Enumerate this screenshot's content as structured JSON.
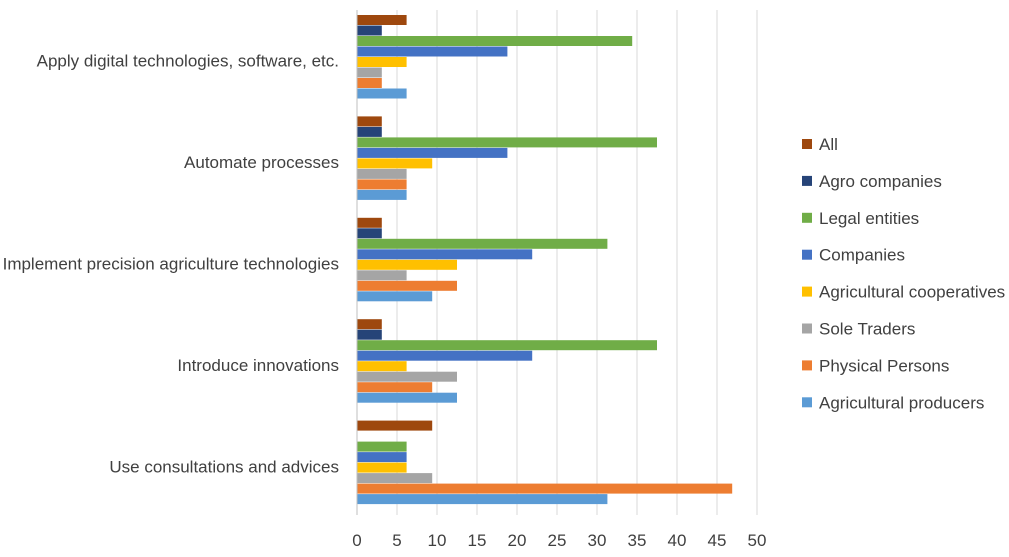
{
  "chart_data": {
    "type": "bar",
    "orientation": "horizontal",
    "categories": [
      "Apply digital technologies, software, etc.",
      "Automate processes",
      "Implement precision agriculture technologies",
      "Introduce innovations",
      "Use consultations and advices"
    ],
    "series": [
      {
        "name": "All",
        "color": "#9E480E",
        "values": [
          6.2,
          3.1,
          3.1,
          3.1,
          9.4
        ]
      },
      {
        "name": "Agro companies",
        "color": "#264478",
        "values": [
          3.1,
          3.1,
          3.1,
          3.1,
          0
        ]
      },
      {
        "name": "Legal entities",
        "color": "#70AD47",
        "values": [
          34.4,
          37.5,
          31.3,
          37.5,
          6.2
        ]
      },
      {
        "name": "Companies",
        "color": "#4472C4",
        "values": [
          18.8,
          18.8,
          21.9,
          21.9,
          6.2
        ]
      },
      {
        "name": "Agricultural cooperatives",
        "color": "#FFC000",
        "values": [
          6.2,
          9.4,
          12.5,
          6.2,
          6.2
        ]
      },
      {
        "name": "Sole Traders",
        "color": "#A5A5A5",
        "values": [
          3.1,
          6.2,
          6.2,
          12.5,
          9.4
        ]
      },
      {
        "name": "Physical Persons",
        "color": "#ED7D31",
        "values": [
          3.1,
          6.2,
          12.5,
          9.4,
          46.9
        ]
      },
      {
        "name": "Agricultural producers",
        "color": "#5B9BD5",
        "values": [
          6.2,
          6.2,
          9.4,
          12.5,
          31.3
        ]
      }
    ],
    "x_ticks": [
      "0",
      "5",
      "10",
      "15",
      "20",
      "25",
      "30",
      "35",
      "40",
      "45",
      "50"
    ],
    "xlim": [
      0,
      50
    ],
    "grid": "vertical",
    "legend_position": "right",
    "title": "",
    "xlabel": "",
    "ylabel": ""
  }
}
